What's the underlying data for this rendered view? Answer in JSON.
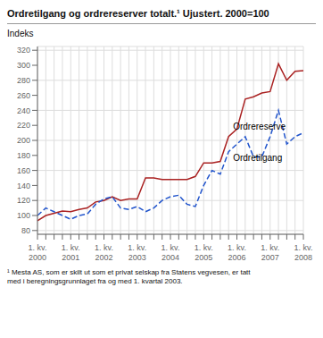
{
  "chart_data": {
    "type": "line",
    "title": "Ordretilgang og ordrereserver totalt.¹ Ujustert. 2000=100",
    "y_label": "Indeks",
    "footnote": "¹ Mesta AS, som er skilt ut som et privat selskap fra Statens vegvesen, er tatt\nmed i beregningsgrunnlaget fra og med 1. kvartal 2003.",
    "categories": [
      "1. kv.\n2000",
      null,
      null,
      null,
      "1. kv.\n2001",
      null,
      null,
      null,
      "1. kv.\n2002",
      null,
      null,
      null,
      "1. kv.\n2003",
      null,
      null,
      null,
      "1. kv.\n2004",
      null,
      null,
      null,
      "1. kv.\n2005",
      null,
      null,
      null,
      "1. kv.\n2006",
      null,
      null,
      null,
      "1. kv.\n2007",
      null,
      null,
      null,
      "1. kv.\n2008"
    ],
    "series": [
      {
        "name": "Ordrereserve",
        "color": "#aa2222",
        "line_style": "solid",
        "values": [
          93,
          100,
          103,
          106,
          105,
          108,
          110,
          118,
          120,
          125,
          120,
          122,
          122,
          150,
          150,
          148,
          148,
          148,
          148,
          152,
          170,
          170,
          172,
          205,
          215,
          255,
          258,
          263,
          265,
          302,
          280,
          292,
          293
        ]
      },
      {
        "name": "Ordretilgang",
        "color": "#2255cc",
        "line_style": "dashed",
        "values": [
          100,
          110,
          105,
          100,
          95,
          100,
          102,
          115,
          122,
          125,
          110,
          108,
          112,
          105,
          110,
          120,
          125,
          127,
          115,
          112,
          140,
          160,
          155,
          185,
          195,
          205,
          178,
          178,
          205,
          240,
          195,
          205,
          210
        ]
      }
    ],
    "ylim": [
      75,
      325
    ],
    "yticks": [
      80,
      100,
      120,
      140,
      160,
      180,
      200,
      220,
      240,
      260,
      280,
      300,
      320
    ],
    "grid": true,
    "annotations": [
      {
        "text": "Ordrereserve",
        "x": 23,
        "y": 218
      },
      {
        "text": "Ordretilgang",
        "x": 23,
        "y": 177
      }
    ]
  }
}
